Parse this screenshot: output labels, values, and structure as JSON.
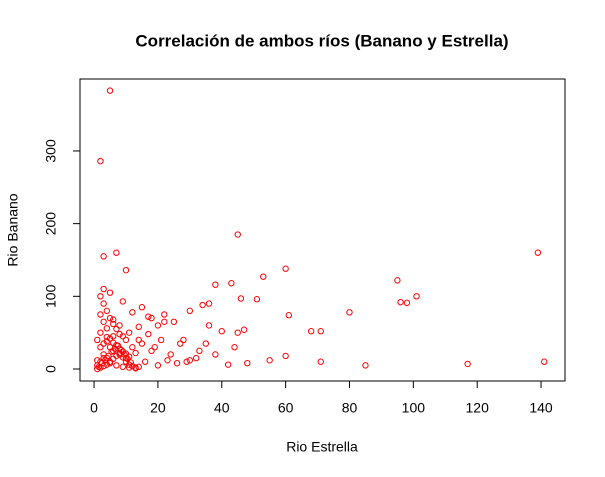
{
  "chart_data": {
    "type": "scatter",
    "title": "Correlación de ambos ríos (Banano y Estrella)",
    "x_label": "Rio Estrella",
    "y_label": "Rio Banano",
    "color": "#ff0000",
    "xlim": [
      -4.4,
      147.5
    ],
    "ylim": [
      -16.5,
      399
    ],
    "xticks": [
      0,
      20,
      40,
      60,
      80,
      100,
      120,
      140
    ],
    "yticks": [
      0,
      100,
      200,
      300
    ],
    "x": [
      5,
      2,
      45,
      7,
      139,
      3,
      10,
      60,
      53,
      95,
      43,
      38,
      96,
      98,
      101,
      80,
      61,
      68,
      71,
      46,
      51,
      36,
      34,
      30,
      47,
      45,
      40,
      60,
      71,
      85,
      117,
      141,
      55,
      48,
      42,
      3,
      2,
      4,
      9,
      15,
      22,
      25,
      28,
      35,
      20,
      18,
      12,
      8,
      6,
      5,
      3,
      1,
      2,
      4,
      6,
      8,
      10,
      12,
      14,
      16,
      18,
      20,
      24,
      26,
      30,
      33,
      38,
      1,
      2,
      3,
      5,
      7,
      9,
      11,
      13,
      15,
      17,
      19,
      21,
      23,
      1.5,
      2.5,
      3.5,
      4.5,
      5.5,
      6.5,
      7.5,
      8.5,
      9.5,
      10.5,
      11.5,
      1,
      2,
      3,
      4,
      5,
      6,
      7,
      8,
      9,
      10,
      11,
      12,
      13,
      14,
      2,
      3,
      4,
      5,
      6,
      7,
      8,
      9,
      10,
      11,
      1,
      3,
      5,
      7,
      9,
      11,
      13,
      4,
      6,
      8,
      10,
      27,
      32,
      36,
      44,
      29,
      22,
      17,
      14,
      4,
      3,
      5,
      2,
      6
    ],
    "values": [
      383,
      286,
      185,
      160,
      160,
      155,
      136,
      138,
      127,
      122,
      118,
      116,
      92,
      91,
      100,
      78,
      74,
      52,
      52,
      97,
      96,
      90,
      88,
      80,
      54,
      50,
      52,
      18,
      10,
      5,
      7,
      10,
      12,
      8,
      6,
      110,
      100,
      80,
      93,
      85,
      75,
      65,
      40,
      35,
      60,
      70,
      78,
      60,
      45,
      30,
      20,
      5,
      10,
      15,
      25,
      20,
      15,
      30,
      40,
      10,
      25,
      5,
      20,
      8,
      12,
      25,
      20,
      40,
      50,
      65,
      70,
      55,
      45,
      50,
      22,
      35,
      48,
      30,
      40,
      12,
      3,
      8,
      12,
      18,
      24,
      28,
      32,
      26,
      20,
      14,
      9,
      0,
      2,
      4,
      6,
      10,
      14,
      18,
      22,
      16,
      10,
      6,
      4,
      2,
      3,
      30,
      35,
      38,
      42,
      36,
      33,
      28,
      24,
      21,
      17,
      12,
      15,
      8,
      5,
      3,
      2,
      1,
      56,
      62,
      48,
      40,
      35,
      15,
      60,
      30,
      10,
      65,
      72,
      58,
      44,
      90,
      105,
      75,
      68
    ]
  }
}
